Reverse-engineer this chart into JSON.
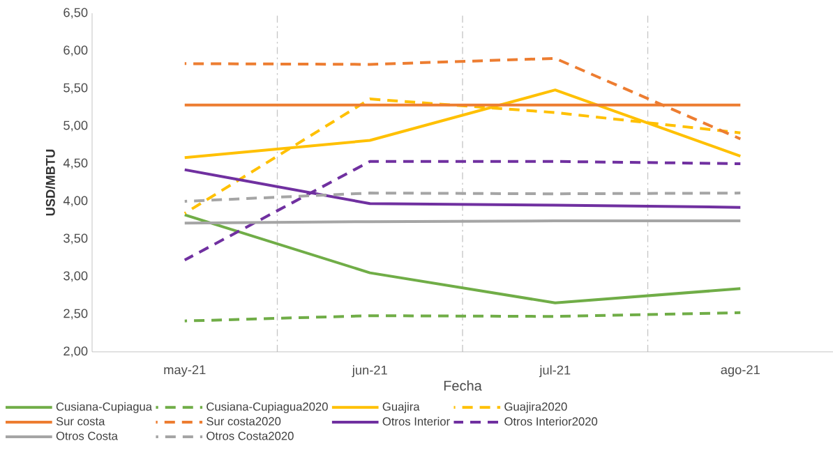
{
  "chart_data": {
    "type": "line",
    "xlabel": "Fecha",
    "ylabel": "USD/MBTU",
    "categories": [
      "may-21",
      "jun-21",
      "jul-21",
      "ago-21"
    ],
    "ylim": [
      2,
      6.5
    ],
    "yticks": [
      {
        "value": 2,
        "label": "2,00"
      },
      {
        "value": 2.5,
        "label": "2,50"
      },
      {
        "value": 3,
        "label": "3,00"
      },
      {
        "value": 3.5,
        "label": "3,50"
      },
      {
        "value": 4,
        "label": "4,00"
      },
      {
        "value": 4.5,
        "label": "4,50"
      },
      {
        "value": 5,
        "label": "5,00"
      },
      {
        "value": 5.5,
        "label": "5,50"
      },
      {
        "value": 6,
        "label": "6,00"
      },
      {
        "value": 6.5,
        "label": "6,50"
      }
    ],
    "grid": "x",
    "legend": "bottom",
    "marker": "none",
    "series": [
      {
        "name": "Cusiana-Cupiagua",
        "color": "#70ad47",
        "line_style": "solid",
        "values": [
          3.82,
          3.05,
          2.65,
          2.84
        ]
      },
      {
        "name": "Cusiana-Cupiagua2020",
        "color": "#70ad47",
        "line_style": "dashed",
        "values": [
          2.41,
          2.48,
          2.47,
          2.52
        ]
      },
      {
        "name": "Guajira",
        "color": "#ffc000",
        "line_style": "solid",
        "values": [
          4.58,
          4.81,
          5.48,
          4.6
        ]
      },
      {
        "name": "Guajira2020",
        "color": "#ffc000",
        "line_style": "dashed",
        "values": [
          3.84,
          5.36,
          5.18,
          4.91
        ]
      },
      {
        "name": "Sur costa",
        "color": "#ed7d31",
        "line_style": "solid",
        "values": [
          5.28,
          5.28,
          5.28,
          5.28
        ]
      },
      {
        "name": "Sur costa2020",
        "color": "#ed7d31",
        "line_style": "dashed",
        "values": [
          5.83,
          5.82,
          5.9,
          4.83
        ]
      },
      {
        "name": "Otros Interior",
        "color": "#7030a0",
        "line_style": "solid",
        "values": [
          4.42,
          3.97,
          3.95,
          3.92
        ]
      },
      {
        "name": "Otros Interior2020",
        "color": "#7030a0",
        "line_style": "dashed",
        "values": [
          3.22,
          4.53,
          4.53,
          4.5
        ]
      },
      {
        "name": "Otros Costa",
        "color": "#a5a5a5",
        "line_style": "solid",
        "values": [
          3.71,
          3.73,
          3.74,
          3.74
        ]
      },
      {
        "name": "Otros Costa2020",
        "color": "#a5a5a5",
        "line_style": "dashed",
        "values": [
          4.0,
          4.11,
          4.1,
          4.11
        ]
      }
    ]
  }
}
